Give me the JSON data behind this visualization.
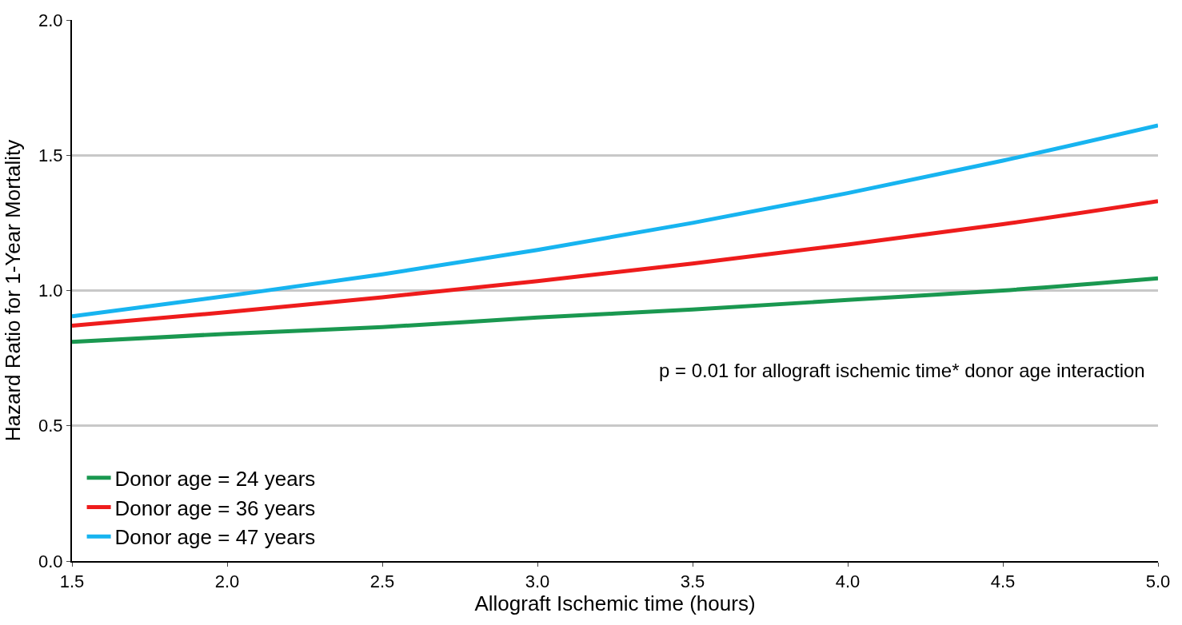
{
  "chart_data": {
    "type": "line",
    "xlabel": "Allograft Ischemic time (hours)",
    "ylabel": "Hazard Ratio for 1-Year Mortality",
    "x": [
      1.5,
      2.0,
      2.5,
      3.0,
      3.5,
      4.0,
      4.5,
      5.0
    ],
    "series": [
      {
        "name": "Donor age = 24 years",
        "color": "#1a9850",
        "values": [
          0.81,
          0.84,
          0.865,
          0.9,
          0.93,
          0.965,
          1.0,
          1.045
        ]
      },
      {
        "name": "Donor age = 36 years",
        "color": "#ee1c1c",
        "values": [
          0.87,
          0.92,
          0.975,
          1.035,
          1.1,
          1.17,
          1.245,
          1.33
        ]
      },
      {
        "name": "Donor age = 47 years",
        "color": "#17b4f0",
        "values": [
          0.905,
          0.98,
          1.06,
          1.15,
          1.25,
          1.36,
          1.48,
          1.61
        ]
      }
    ],
    "xlim": [
      1.5,
      5.0
    ],
    "ylim": [
      0.0,
      2.0
    ],
    "xticks": [
      1.5,
      {
        "value": 2.0,
        "label": "2.0"
      },
      2.5,
      {
        "value": 3.0,
        "label": "3.0"
      },
      3.5,
      {
        "value": 4.0,
        "label": "4.0"
      },
      4.5,
      {
        "value": 5.0,
        "label": "5.0"
      }
    ],
    "yticks": [
      {
        "value": 0.0,
        "label": "0.0"
      },
      0.5,
      {
        "value": 1.0,
        "label": "1.0"
      },
      1.5,
      {
        "value": 2.0,
        "label": "2.0"
      }
    ],
    "annotations": [
      "p = 0.01 for allograft ischemic time* donor age interaction"
    ],
    "grid": "y",
    "legend": "bottom left",
    "marker": "none",
    "line_style": "solid"
  }
}
